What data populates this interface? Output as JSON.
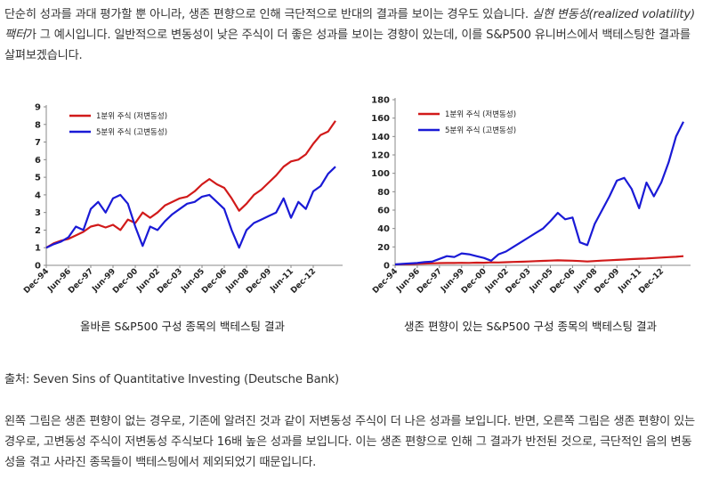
{
  "intro": {
    "part1": "단순히 성과를 과대 평가할 뿐 아니라, 생존 편향으로 인해 극단적으로 반대의 결과를 보이는 경우도 있습니다. ",
    "emph": "실현 변동성(realized volatility) 팩터",
    "part2": "가 그 예시입니다. 일반적으로 변동성이 낮은 주식이 더 좋은 성과를 보이는 경향이 있는데, 이를 S&P500 유니버스에서 백테스팅한 결과를 살펴보겠습니다."
  },
  "source": "출처: Seven Sins of Quantitative Investing (Deutsche Bank)",
  "conclusion": "왼쪽 그림은 생존 편향이 없는 경우로, 기존에 알려진 것과 같이 저변동성 주식이 더 나은 성과를 보입니다. 반면, 오른쪽 그림은 생존 편향이 있는 경우로, 고변동성 주식이 저변동성 주식보다 16배 높은 성과를 보입니다. 이는 생존 편향으로 인해 그 결과가 반전된 것으로, 극단적인 음의 변동성을 겪고 사라진 종목들이 백테스팅에서 제외되었기 때문입니다.",
  "colors": {
    "low_vol": "#d11a1a",
    "high_vol": "#1a1ad6"
  },
  "chart_data": [
    {
      "type": "line",
      "title": "올바른 S&P500 구성 종목의 백테스팅 결과",
      "xlabel": "",
      "ylabel": "",
      "ylim": [
        0,
        9
      ],
      "yticks": [
        "0",
        "1",
        "2",
        "3",
        "4",
        "5",
        "6",
        "7",
        "8",
        "9"
      ],
      "categories": [
        "Dec-94",
        "Jun-96",
        "Dec-97",
        "Jun-99",
        "Dec-00",
        "Jun-02",
        "Dec-03",
        "Jun-05",
        "Dec-06",
        "Jun-08",
        "Dec-09",
        "Jun-11",
        "Dec-12"
      ],
      "x": [
        0,
        0.5,
        1,
        1.5,
        2,
        2.5,
        3,
        3.5,
        4,
        4.5,
        5,
        5.5,
        6,
        6.5,
        7,
        7.5,
        8,
        8.5,
        9,
        9.5,
        10,
        10.5,
        11,
        11.5,
        12,
        12.5,
        13,
        13.5,
        14,
        14.5,
        15,
        15.5,
        16,
        16.5,
        17,
        17.5,
        18,
        18.5,
        19,
        19.5
      ],
      "series": [
        {
          "name": "1분위 주식 (저변동성)",
          "values": [
            1.0,
            1.25,
            1.4,
            1.5,
            1.7,
            1.9,
            2.2,
            2.3,
            2.15,
            2.3,
            2.0,
            2.6,
            2.4,
            3.0,
            2.7,
            3.0,
            3.4,
            3.6,
            3.8,
            3.9,
            4.2,
            4.6,
            4.9,
            4.6,
            4.4,
            3.8,
            3.1,
            3.5,
            4.0,
            4.3,
            4.7,
            5.1,
            5.6,
            5.9,
            6.0,
            6.3,
            6.9,
            7.4,
            7.6,
            8.2
          ]
        },
        {
          "name": "5분위 주식 (고변동성)",
          "values": [
            1.0,
            1.2,
            1.35,
            1.6,
            2.2,
            2.0,
            3.2,
            3.6,
            3.0,
            3.8,
            4.0,
            3.5,
            2.2,
            1.1,
            2.2,
            2.0,
            2.5,
            2.9,
            3.2,
            3.5,
            3.6,
            3.9,
            4.0,
            3.6,
            3.2,
            2.0,
            1.0,
            2.0,
            2.4,
            2.6,
            2.8,
            3.0,
            3.8,
            2.7,
            3.6,
            3.2,
            4.2,
            4.5,
            5.2,
            5.6
          ]
        }
      ]
    },
    {
      "type": "line",
      "title": "생존 편향이 있는 S&P500 구성 종목의 백테스팅 결과",
      "xlabel": "",
      "ylabel": "",
      "ylim": [
        0,
        180
      ],
      "yticks": [
        "0",
        "20",
        "40",
        "60",
        "80",
        "100",
        "120",
        "140",
        "160",
        "180"
      ],
      "categories": [
        "Dec-94",
        "Jun-96",
        "Dec-97",
        "Jun-99",
        "Dec-00",
        "Jun-02",
        "Dec-03",
        "Jun-05",
        "Dec-06",
        "Jun-08",
        "Dec-09",
        "Jun-11",
        "Dec-12"
      ],
      "x": [
        0,
        0.5,
        1,
        1.5,
        2,
        2.5,
        3,
        3.5,
        4,
        4.5,
        5,
        5.5,
        6,
        6.5,
        7,
        7.5,
        8,
        8.5,
        9,
        9.5,
        10,
        10.5,
        11,
        11.5,
        12,
        12.5,
        13,
        13.5,
        14,
        14.5,
        15,
        15.5,
        16,
        16.5,
        17,
        17.5,
        18,
        18.5,
        19,
        19.5
      ],
      "series": [
        {
          "name": "1분위 주식 (저변동성)",
          "values": [
            1,
            1.2,
            1.4,
            1.6,
            1.9,
            2.1,
            2.4,
            2.5,
            2.5,
            2.7,
            2.6,
            2.9,
            2.8,
            3.2,
            3.1,
            3.4,
            3.7,
            3.9,
            4.2,
            4.5,
            4.8,
            5.1,
            5.4,
            5.2,
            5.0,
            4.6,
            4.2,
            4.6,
            5.1,
            5.5,
            5.9,
            6.3,
            6.8,
            7.2,
            7.5,
            7.9,
            8.4,
            8.9,
            9.3,
            10.0
          ]
        },
        {
          "name": "5분위 주식 (고변동성)",
          "values": [
            1,
            1.5,
            2,
            2.5,
            3.5,
            4,
            7,
            10,
            9,
            13,
            12,
            10,
            8,
            5,
            12,
            15,
            20,
            25,
            30,
            35,
            40,
            48,
            57,
            50,
            52,
            25,
            22,
            45,
            60,
            75,
            92,
            95,
            83,
            62,
            90,
            75,
            90,
            112,
            140,
            156
          ]
        }
      ]
    }
  ]
}
